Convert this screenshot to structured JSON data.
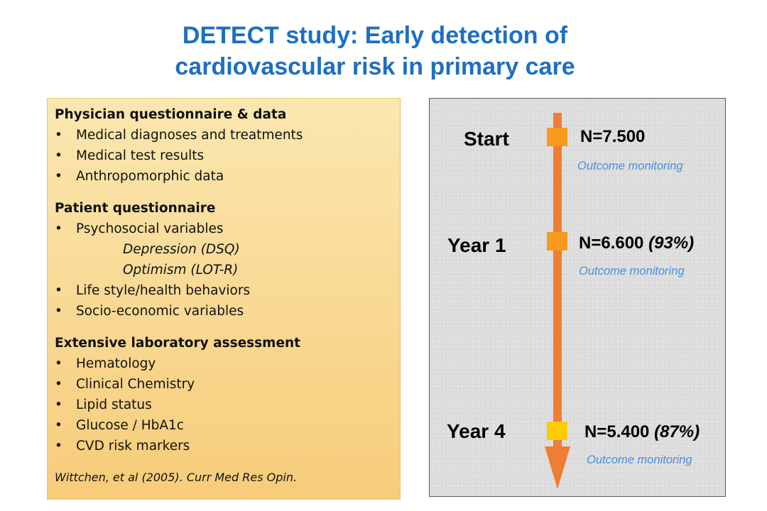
{
  "title": {
    "line1": "DETECT study: Early detection of",
    "line2": "cardiovascular risk in primary care"
  },
  "left_panel": {
    "sections": [
      {
        "heading": "Physician questionnaire & data",
        "items": [
          "Medical diagnoses and treatments",
          "Medical test results",
          "Anthropomorphic data"
        ]
      },
      {
        "heading": "Patient questionnaire",
        "items": [
          "Psychosocial variables",
          "Depression (DSQ)",
          "Optimism (LOT-R)",
          "Life style/health behaviors",
          "Socio-economic variables"
        ]
      },
      {
        "heading": "Extensive laboratory assessment",
        "items": [
          "Hematology",
          "Clinical Chemistry",
          "Lipid status",
          "Glucose / HbA1c",
          "CVD risk markers"
        ]
      }
    ],
    "bullet": "•",
    "citation": "Wittchen, et al (2005). Curr Med Res Opin."
  },
  "timeline": {
    "colors": {
      "arrow": "#ef7d33",
      "marker_orange": "#f79a1e",
      "marker_yellow": "#ffcc00",
      "monitor_text": "#4a8fe0"
    },
    "stages": [
      {
        "label": "Start",
        "n": "N=7.500",
        "pct": "",
        "monitor": "Outcome monitoring",
        "marker_color": "#f79a1e"
      },
      {
        "label": "Year 1",
        "n": "N=6.600",
        "pct": "(93%)",
        "monitor": "Outcome monitoring",
        "marker_color": "#f79a1e"
      },
      {
        "label": "Year 4",
        "n": "N=5.400",
        "pct": "(87%)",
        "monitor": "Outcome monitoring",
        "marker_color": "#ffcc00"
      }
    ]
  }
}
